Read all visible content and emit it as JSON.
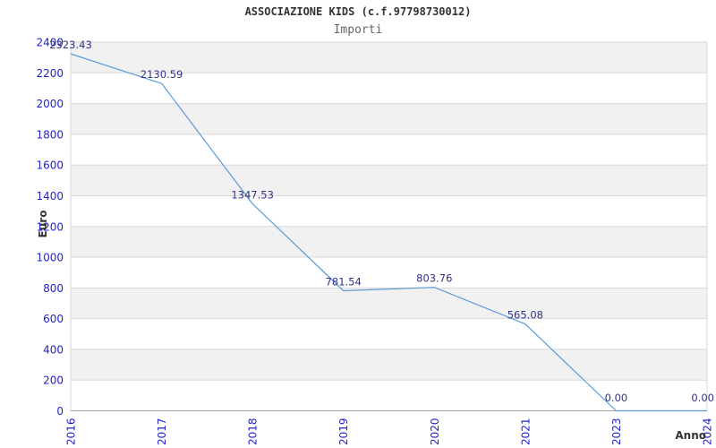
{
  "chart_data": {
    "type": "line",
    "title": "ASSOCIAZIONE KIDS (c.f.97798730012)",
    "subtitle": "Importi",
    "xlabel": "Anno",
    "ylabel": "Euro",
    "categories": [
      "2016",
      "2017",
      "2018",
      "2019",
      "2020",
      "2021",
      "2023",
      "2024"
    ],
    "values": [
      2323.43,
      2130.59,
      1347.53,
      781.54,
      803.76,
      565.08,
      0.0,
      0.0
    ],
    "point_labels": [
      "2323.43",
      "2130.59",
      "1347.53",
      "781.54",
      "803.76",
      "565.08",
      "0.00",
      "0.00"
    ],
    "ylim": [
      0,
      2400
    ],
    "yticks": [
      0,
      200,
      400,
      600,
      800,
      1000,
      1200,
      1400,
      1600,
      1800,
      2000,
      2200,
      2400
    ],
    "grid": "horizontal-bands",
    "legend": "none",
    "colors": {
      "line": "#5b9bd5",
      "tick_label": "#2222cc",
      "point_label": "#333388",
      "band": "#f1f1f1",
      "grid": "#d8d8d8",
      "axis": "#a0a0a0",
      "title": "#333333",
      "subtitle": "#666666",
      "axis_title": "#333333",
      "background": "#ffffff"
    }
  }
}
